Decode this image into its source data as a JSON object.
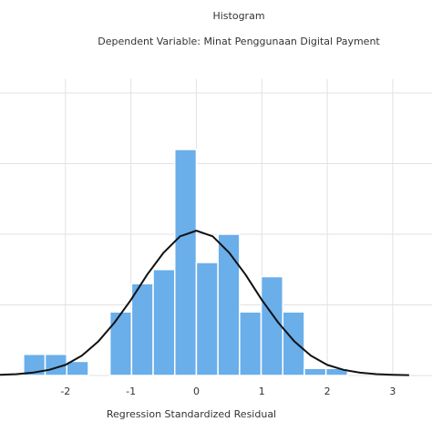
{
  "chart_data": {
    "type": "histogram",
    "title": "Histogram",
    "subtitle": "Dependent Variable: Minat Penggunaan Digital Payment",
    "x_label": "Regression Standardized Residual",
    "bins": [
      -2.64,
      -2.31,
      -1.98,
      -1.65,
      -1.32,
      -0.99,
      -0.66,
      -0.33,
      0,
      0.33,
      0.66,
      0.99,
      1.32,
      1.65,
      1.98,
      2.31,
      2.64
    ],
    "values": [
      3,
      3,
      2,
      0,
      9,
      13,
      15,
      32,
      16,
      20,
      9,
      14,
      9,
      1,
      1,
      0
    ],
    "color": "#6aaeea",
    "curve": {
      "color": "#111111",
      "x": [
        -3,
        -2.75,
        -2.5,
        -2.25,
        -2,
        -1.75,
        -1.5,
        -1.25,
        -1,
        -0.75,
        -0.5,
        -0.25,
        0,
        0.25,
        0.5,
        0.75,
        1,
        1.25,
        1.5,
        1.75,
        2,
        2.25,
        2.5,
        2.75,
        3,
        3.25
      ],
      "y": [
        0.1,
        0.2,
        0.4,
        0.8,
        1.5,
        2.8,
        4.8,
        7.5,
        10.7,
        14.3,
        17.4,
        19.7,
        20.5,
        19.7,
        17.4,
        14.3,
        10.7,
        7.5,
        4.8,
        2.8,
        1.5,
        0.8,
        0.4,
        0.2,
        0.1,
        0.05
      ]
    },
    "xlim": [
      -3,
      3.6
    ],
    "ylim": [
      0,
      42
    ],
    "xticks": [
      -2,
      -1,
      0,
      1,
      2,
      3
    ],
    "grid_y": [
      0,
      10,
      20,
      30,
      40
    ],
    "grid": true
  }
}
